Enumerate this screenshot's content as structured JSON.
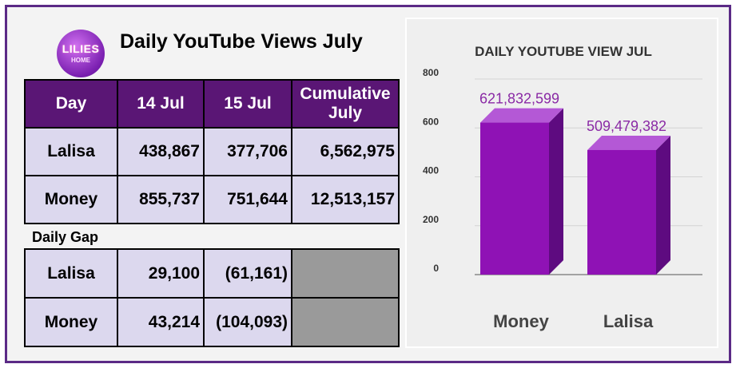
{
  "logo": {
    "line1": "LILIES",
    "line2": "HOME"
  },
  "table_title": "Daily YouTube Views July",
  "table": {
    "headers": [
      "Day",
      "14 Jul",
      "15 Jul",
      "Cumulative July"
    ],
    "rows": [
      [
        "Lalisa",
        "438,867",
        "377,706",
        "6,562,975"
      ],
      [
        "Money",
        "855,737",
        "751,644",
        "12,513,157"
      ]
    ]
  },
  "gap": {
    "label": "Daily Gap",
    "rows": [
      [
        "Lalisa",
        "29,100",
        "(61,161)"
      ],
      [
        "Money",
        "43,214",
        "(104,093)"
      ]
    ]
  },
  "colors": {
    "header_bg": "#5a1675",
    "cell_bg": "#dcd8ee",
    "bar_front": "#8f12b5",
    "bar_side": "#5e0b80",
    "bar_top": "#b458d6",
    "data_label": "#8a2aa5"
  },
  "chart_data": {
    "type": "bar",
    "title": "DAILY YOUTUBE VIEW JUL",
    "categories": [
      "Money",
      "Lalisa"
    ],
    "values": [
      621832599,
      509479382
    ],
    "data_labels": [
      "621,832,599",
      "509,479,382"
    ],
    "yticks": [
      "800",
      "600",
      "400",
      "200",
      "0"
    ],
    "ylim": [
      0,
      800
    ],
    "grid": true,
    "style": "3d-column"
  }
}
